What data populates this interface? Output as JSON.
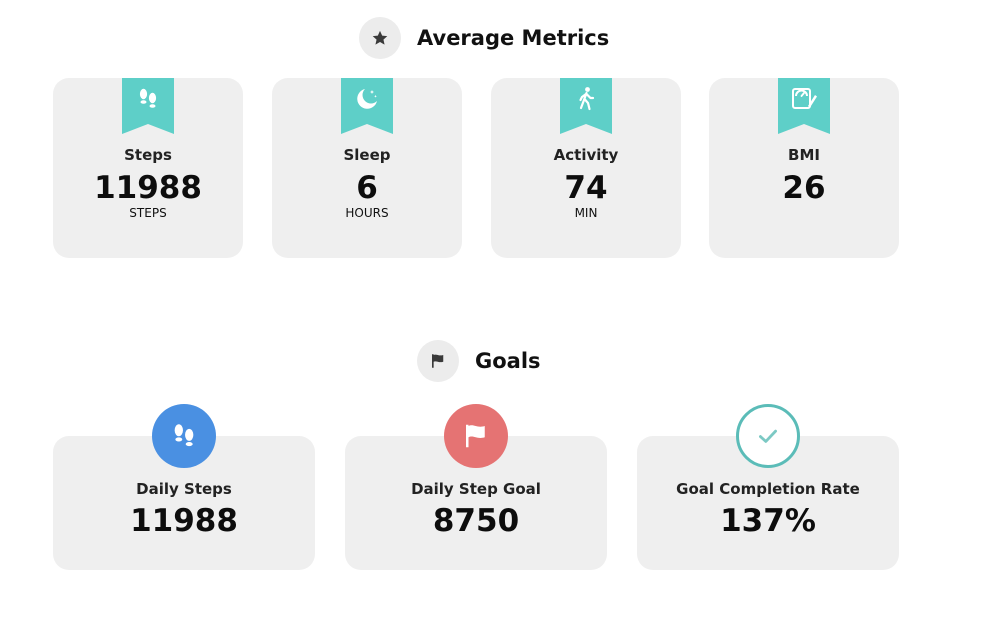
{
  "average_metrics": {
    "title": "Average Metrics",
    "icon": "star-icon",
    "accent_color": "#5ecfc8",
    "cards": [
      {
        "label": "Steps",
        "value": "11988",
        "unit": "STEPS",
        "icon": "footprints-icon"
      },
      {
        "label": "Sleep",
        "value": "6",
        "unit": "HOURS",
        "icon": "moon-icon"
      },
      {
        "label": "Activity",
        "value": "74",
        "unit": "MIN",
        "icon": "walking-person-icon"
      },
      {
        "label": "BMI",
        "value": "26",
        "unit": "",
        "icon": "scale-icon"
      }
    ]
  },
  "goals": {
    "title": "Goals",
    "icon": "flag-icon",
    "cards": [
      {
        "label": "Daily Steps",
        "value": "11988",
        "icon": "footprints-icon",
        "badge_color": "#4a90e2"
      },
      {
        "label": "Daily Step Goal",
        "value": "8750",
        "icon": "flag-icon",
        "badge_color": "#e57373"
      },
      {
        "label": "Goal Completion Rate",
        "value": "137%",
        "icon": "checkmark-icon",
        "badge_color": "#5bbcb8"
      }
    ]
  }
}
